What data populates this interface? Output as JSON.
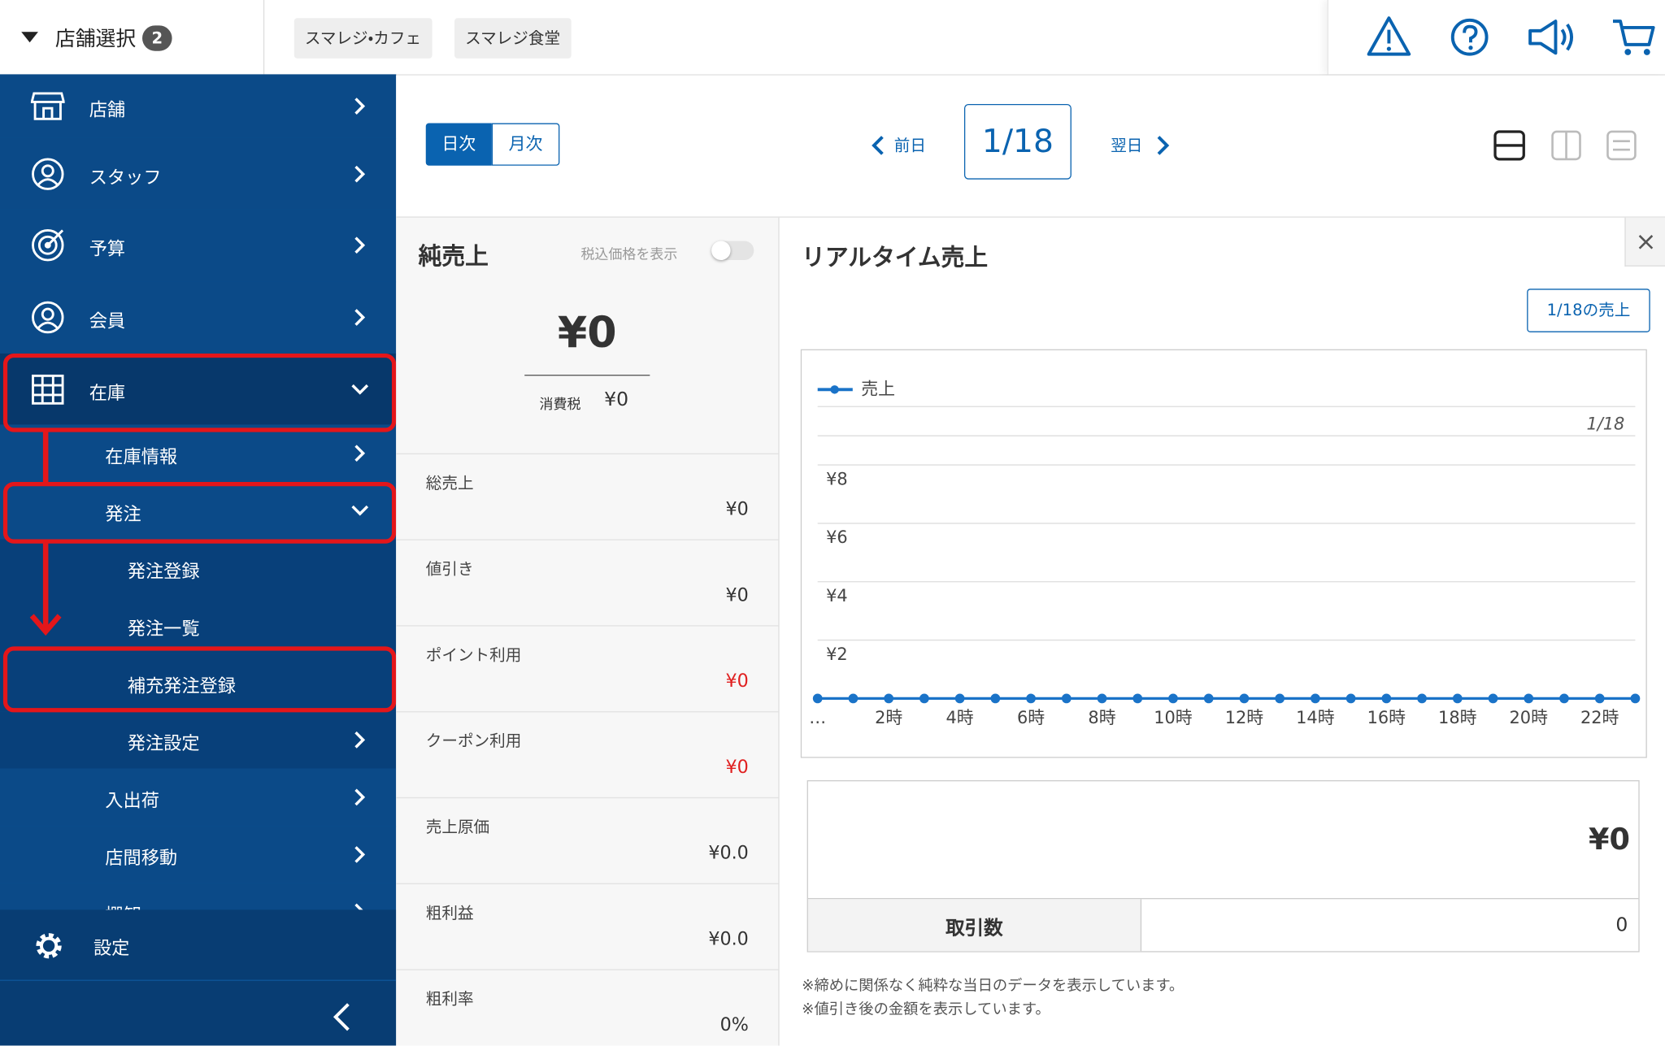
{
  "header": {
    "store_select": "店舗選択",
    "store_count": "2",
    "tabs": [
      "スマレジ・カフェ",
      "スマレジ食堂"
    ]
  },
  "sidebar": {
    "items": [
      "店舗",
      "スタッフ",
      "予算",
      "会員",
      "在庫",
      "在庫情報",
      "発注",
      "発注登録",
      "発注一覧",
      "補充発注登録",
      "発注設定",
      "入出荷",
      "店間移動",
      "棚卸"
    ],
    "settings": "設定"
  },
  "toolbar": {
    "periods": [
      "日次",
      "月次"
    ],
    "prev": "前日",
    "date": "1/18",
    "next": "翌日"
  },
  "net_sales": {
    "title": "純売上",
    "tax_toggle": "税込価格を表示",
    "amount": "¥0",
    "tax_label": "消費税",
    "tax": "¥0",
    "rows": [
      {
        "label": "総売上",
        "value": "¥0"
      },
      {
        "label": "値引き",
        "value": "¥0"
      },
      {
        "label": "ポイント利用",
        "value": "¥0",
        "color": "#e02020"
      },
      {
        "label": "クーポン利用",
        "value": "¥0",
        "color": "#e02020"
      },
      {
        "label": "売上原価",
        "value": "¥0.0"
      },
      {
        "label": "粗利益",
        "value": "¥0.0"
      },
      {
        "label": "粗利率",
        "value": "0%"
      }
    ]
  },
  "realtime": {
    "title": "リアルタイム売上",
    "button": "1/18の売上",
    "chart": {
      "type": "line",
      "date_label": "1/18",
      "x": [
        0,
        1,
        2,
        3,
        4,
        5,
        6,
        7,
        8,
        9,
        10,
        11,
        12,
        13,
        14,
        15,
        16,
        17,
        18,
        19,
        20,
        21,
        22,
        23
      ],
      "series": [
        {
          "name": "売上",
          "color": "#1a73c8",
          "values": [
            0,
            0,
            0,
            0,
            0,
            0,
            0,
            0,
            0,
            0,
            0,
            0,
            0,
            0,
            0,
            0,
            0,
            0,
            0,
            0,
            0,
            0,
            0,
            0
          ]
        }
      ],
      "xlim": [
        0,
        23
      ],
      "xticks": [
        {
          "value": 0,
          "label": "…"
        },
        {
          "value": 2,
          "label": "2時"
        },
        {
          "value": 4,
          "label": "4時"
        },
        {
          "value": 6,
          "label": "6時"
        },
        {
          "value": 8,
          "label": "8時"
        },
        {
          "value": 10,
          "label": "10時"
        },
        {
          "value": 12,
          "label": "12時"
        },
        {
          "value": 14,
          "label": "14時"
        },
        {
          "value": 16,
          "label": "16時"
        },
        {
          "value": 18,
          "label": "18時"
        },
        {
          "value": 20,
          "label": "20時"
        },
        {
          "value": 22,
          "label": "22時"
        }
      ],
      "ylim": [
        0,
        9
      ],
      "yticks": [
        {
          "value": 2,
          "label": "¥2"
        },
        {
          "value": 4,
          "label": "¥4"
        },
        {
          "value": 6,
          "label": "¥6"
        },
        {
          "value": 8,
          "label": "¥8"
        }
      ],
      "grid": true
    },
    "summary_amount": "¥0",
    "count_label": "取引数",
    "count": 0,
    "notes": [
      "※締めに関係なく純粋な当日のデータを表示しています。",
      "※値引き後の金額を表示しています。"
    ]
  }
}
